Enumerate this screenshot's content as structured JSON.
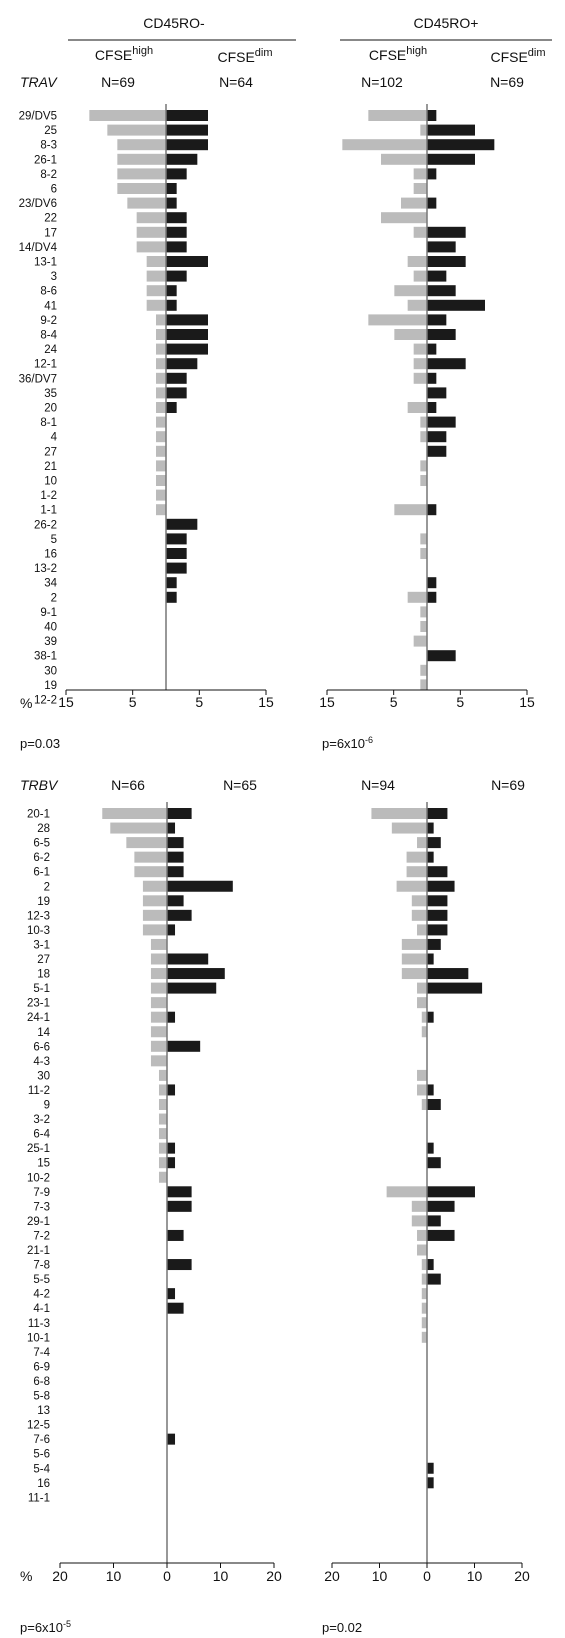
{
  "header": {
    "group_left": "CD45RO-",
    "group_right": "CD45RO+",
    "cfse_high": "CFSE",
    "cfse_high_sup": "high",
    "cfse_dim": "CFSE",
    "cfse_dim_sup": "dim"
  },
  "colors": {
    "high_bar": "#bbbbbb",
    "dim_bar": "#1a1a1a",
    "axis": "#777777"
  },
  "chart_data": [
    {
      "type": "bar",
      "orientation": "horizontal-mirrored",
      "gene_label": "TRAV",
      "axis_unit": "%",
      "categories": [
        "29/DV5",
        "25",
        "8-3",
        "26-1",
        "8-2",
        "6",
        "23/DV6",
        "22",
        "17",
        "14/DV4",
        "13-1",
        "3",
        "8-6",
        "41",
        "9-2",
        "8-4",
        "24",
        "12-1",
        "36/DV7",
        "35",
        "20",
        "8-1",
        "4",
        "27",
        "21",
        "10",
        "1-2",
        "1-1",
        "26-2",
        "5",
        "16",
        "13-2",
        "34",
        "2",
        "9-1",
        "40",
        "39",
        "38-1",
        "30",
        "19",
        "12-2"
      ],
      "panels": [
        {
          "group": "CD45RO-",
          "n_high": "N=69",
          "n_dim": "N=64",
          "p_value": "p=0.03",
          "xlim": [
            -15,
            15
          ],
          "ticks": [
            -15,
            -5,
            5,
            15
          ],
          "tick_labels": [
            "15",
            "5",
            "5",
            "15"
          ],
          "series": [
            {
              "name": "CFSEhigh",
              "values": [
                11.5,
                8.8,
                7.3,
                7.3,
                7.3,
                7.3,
                5.8,
                4.4,
                4.4,
                4.4,
                2.9,
                2.9,
                2.9,
                2.9,
                1.5,
                1.5,
                1.5,
                1.5,
                1.5,
                1.5,
                1.5,
                1.5,
                1.5,
                1.5,
                1.5,
                1.5,
                1.5,
                1.5,
                0,
                0,
                0,
                0,
                0,
                0,
                0,
                0,
                0,
                0,
                0,
                0,
                0
              ]
            },
            {
              "name": "CFSEdim",
              "values": [
                6.3,
                6.3,
                6.3,
                4.7,
                3.1,
                1.6,
                1.6,
                3.1,
                3.1,
                3.1,
                6.3,
                3.1,
                1.6,
                1.6,
                6.3,
                6.3,
                6.3,
                4.7,
                3.1,
                3.1,
                1.6,
                0,
                0,
                0,
                0,
                0,
                0,
                0,
                4.7,
                3.1,
                3.1,
                3.1,
                1.6,
                1.6,
                0,
                0,
                0,
                0,
                0,
                0,
                0
              ]
            }
          ]
        },
        {
          "group": "CD45RO+",
          "n_high": "N=102",
          "n_dim": "N=69",
          "p_value": "p=6x10",
          "p_exp": "-6",
          "xlim": [
            -15,
            15
          ],
          "ticks": [
            -15,
            -5,
            5,
            15
          ],
          "tick_labels": [
            "15",
            "5",
            "5",
            "15"
          ],
          "series": [
            {
              "name": "CFSEhigh",
              "values": [
                8.8,
                1.0,
                12.7,
                6.9,
                2.0,
                2.0,
                3.9,
                6.9,
                2.0,
                0,
                2.9,
                2.0,
                4.9,
                2.9,
                8.8,
                4.9,
                2.0,
                2.0,
                2.0,
                0,
                2.9,
                1.0,
                1.0,
                0,
                1.0,
                1.0,
                0,
                4.9,
                0,
                1.0,
                1.0,
                0,
                0,
                2.9,
                1.0,
                1.0,
                2.0,
                0,
                1.0,
                1.0,
                0
              ]
            },
            {
              "name": "CFSEdim",
              "values": [
                1.4,
                7.2,
                10.1,
                7.2,
                1.4,
                0,
                1.4,
                0,
                5.8,
                4.3,
                5.8,
                2.9,
                4.3,
                8.7,
                2.9,
                4.3,
                1.4,
                5.8,
                1.4,
                2.9,
                1.4,
                4.3,
                2.9,
                2.9,
                0,
                0,
                0,
                1.4,
                0,
                0,
                0,
                0,
                1.4,
                1.4,
                0,
                0,
                0,
                4.3,
                0,
                0,
                0
              ]
            }
          ]
        }
      ]
    },
    {
      "type": "bar",
      "orientation": "horizontal-mirrored",
      "gene_label": "TRBV",
      "axis_unit": "%",
      "categories": [
        "20-1",
        "28",
        "6-5",
        "6-2",
        "6-1",
        "2",
        "19",
        "12-3",
        "10-3",
        "3-1",
        "27",
        "18",
        "5-1",
        "23-1",
        "24-1",
        "14",
        "6-6",
        "4-3",
        "30",
        "11-2",
        "9",
        "3-2",
        "6-4",
        "25-1",
        "15",
        "10-2",
        "7-9",
        "7-3",
        "29-1",
        "7-2",
        "21-1",
        "7-8",
        "5-5",
        "4-2",
        "4-1",
        "11-3",
        "10-1",
        "7-4",
        "6-9",
        "6-8",
        "5-8",
        "13",
        "12-5",
        "7-6",
        "5-6",
        "5-4",
        "16",
        "11-1"
      ],
      "panels": [
        {
          "group": "CD45RO-",
          "n_high": "N=66",
          "n_dim": "N=65",
          "p_value": "p=6x10",
          "p_exp": "-5",
          "xlim": [
            -20,
            20
          ],
          "ticks": [
            -20,
            -10,
            0,
            10,
            20
          ],
          "tick_labels": [
            "20",
            "10",
            "0",
            "10",
            "20"
          ],
          "series": [
            {
              "name": "CFSEhigh",
              "values": [
                12.1,
                10.6,
                7.6,
                6.1,
                6.1,
                4.5,
                4.5,
                4.5,
                4.5,
                3.0,
                3.0,
                3.0,
                3.0,
                3.0,
                3.0,
                3.0,
                3.0,
                3.0,
                1.5,
                1.5,
                1.5,
                1.5,
                1.5,
                1.5,
                1.5,
                1.5,
                0,
                0,
                0,
                0,
                0,
                0,
                0,
                0,
                0,
                0,
                0,
                0,
                0,
                0,
                0,
                0,
                0,
                0,
                0,
                0,
                0,
                0
              ]
            },
            {
              "name": "CFSEdim",
              "values": [
                4.6,
                1.5,
                3.1,
                3.1,
                3.1,
                12.3,
                3.1,
                4.6,
                1.5,
                0,
                7.7,
                10.8,
                9.2,
                0,
                1.5,
                0,
                6.2,
                0,
                0,
                1.5,
                0,
                0,
                0,
                1.5,
                1.5,
                0,
                4.6,
                4.6,
                0,
                3.1,
                0,
                4.6,
                0,
                1.5,
                3.1,
                0,
                0,
                0,
                0,
                0,
                0,
                0,
                0,
                1.5,
                0,
                0,
                0,
                0
              ]
            }
          ]
        },
        {
          "group": "CD45RO+",
          "n_high": "N=94",
          "n_dim": "N=69",
          "p_value": "p=0.02",
          "xlim": [
            -20,
            20
          ],
          "ticks": [
            -20,
            -10,
            0,
            10,
            20
          ],
          "tick_labels": [
            "20",
            "10",
            "0",
            "10",
            "20"
          ],
          "series": [
            {
              "name": "CFSEhigh",
              "values": [
                11.7,
                7.4,
                2.1,
                4.3,
                4.3,
                6.4,
                3.2,
                3.2,
                2.1,
                5.3,
                5.3,
                5.3,
                2.1,
                2.1,
                1.1,
                1.1,
                0,
                0,
                2.1,
                2.1,
                1.1,
                0,
                0,
                0,
                0,
                0,
                8.5,
                3.2,
                3.2,
                2.1,
                2.1,
                1.1,
                1.1,
                1.1,
                1.1,
                1.1,
                1.1,
                0,
                0,
                0,
                0,
                0,
                0,
                0,
                0,
                0,
                0,
                0
              ]
            },
            {
              "name": "CFSEdim",
              "values": [
                4.3,
                1.4,
                2.9,
                1.4,
                4.3,
                5.8,
                4.3,
                4.3,
                4.3,
                2.9,
                1.4,
                8.7,
                11.6,
                0,
                1.4,
                0,
                0,
                0,
                0,
                1.4,
                2.9,
                0,
                0,
                1.4,
                2.9,
                0,
                10.1,
                5.8,
                2.9,
                5.8,
                0,
                1.4,
                2.9,
                0,
                0,
                0,
                0,
                0,
                0,
                0,
                0,
                0,
                0,
                0,
                0,
                1.4,
                1.4,
                0
              ]
            }
          ]
        }
      ]
    }
  ]
}
